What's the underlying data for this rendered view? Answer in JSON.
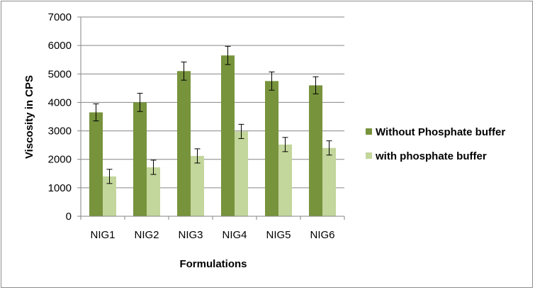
{
  "chart_data": {
    "type": "bar",
    "categories": [
      "NIG1",
      "NIG2",
      "NIG3",
      "NIG4",
      "NIG5",
      "NIG6"
    ],
    "series": [
      {
        "name": "Without Phosphate buffer",
        "values": [
          3650,
          4000,
          5100,
          5650,
          4750,
          4600
        ],
        "error": [
          300,
          320,
          320,
          320,
          320,
          300
        ],
        "color": "#77933c"
      },
      {
        "name": "with phosphate buffer",
        "values": [
          1400,
          1720,
          2120,
          2980,
          2520,
          2400
        ],
        "error": [
          250,
          250,
          250,
          250,
          250,
          250
        ],
        "color": "#c3d69b"
      }
    ],
    "title": "",
    "xlabel": "Formulations",
    "ylabel": "Viscosity in CPS",
    "ylim": [
      0,
      7000
    ],
    "yticks": [
      "0",
      "1000",
      "2000",
      "3000",
      "4000",
      "5000",
      "6000",
      "7000"
    ],
    "grid": true,
    "legend_position": "right"
  }
}
